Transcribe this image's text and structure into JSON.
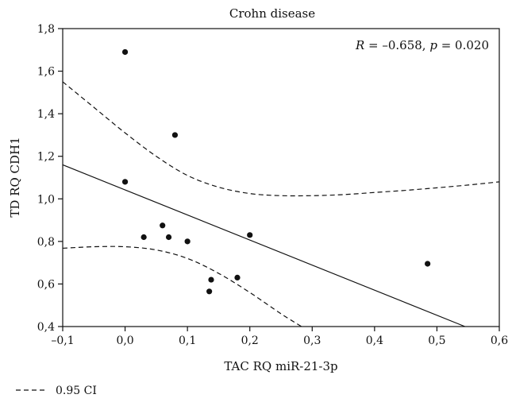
{
  "chart_data": {
    "type": "scatter",
    "title": "Crohn disease",
    "xlabel": "TAC RQ miR-21-3p",
    "ylabel": "TD RQ CDH1",
    "xlim": [
      -0.1,
      0.6
    ],
    "ylim": [
      0.4,
      1.8
    ],
    "x_ticks": [
      "–0,1",
      "0,0",
      "0,1",
      "0,2",
      "0,3",
      "0,4",
      "0,5",
      "0,6"
    ],
    "y_ticks": [
      "0,4",
      "0,6",
      "0,8",
      "1,0",
      "1,2",
      "1,4",
      "1,6",
      "1,8"
    ],
    "grid": false,
    "annotation": {
      "r_symbol": "R",
      "r_text": " = –0.658, ",
      "p_symbol": "p",
      "p_text": " = 0.020",
      "placement": "top-right"
    },
    "points": [
      {
        "x": 0.0,
        "y": 1.69
      },
      {
        "x": 0.08,
        "y": 1.3
      },
      {
        "x": 0.0,
        "y": 1.08
      },
      {
        "x": 0.06,
        "y": 0.875
      },
      {
        "x": 0.03,
        "y": 0.82
      },
      {
        "x": 0.07,
        "y": 0.82
      },
      {
        "x": 0.1,
        "y": 0.8
      },
      {
        "x": 0.2,
        "y": 0.83
      },
      {
        "x": 0.138,
        "y": 0.62
      },
      {
        "x": 0.135,
        "y": 0.565
      },
      {
        "x": 0.18,
        "y": 0.63
      },
      {
        "x": 0.485,
        "y": 0.695
      }
    ],
    "regression_line": {
      "x": [
        -0.1,
        0.545
      ],
      "y": [
        1.16,
        0.4
      ]
    },
    "ci_upper": {
      "x": [
        -0.1,
        -0.05,
        0.0,
        0.05,
        0.1,
        0.15,
        0.2,
        0.25,
        0.3,
        0.35,
        0.4,
        0.45,
        0.5,
        0.55,
        0.6
      ],
      "y": [
        1.55,
        1.43,
        1.31,
        1.2,
        1.11,
        1.055,
        1.025,
        1.015,
        1.015,
        1.02,
        1.03,
        1.04,
        1.052,
        1.065,
        1.08
      ]
    },
    "ci_lower": {
      "x": [
        -0.1,
        -0.05,
        0.0,
        0.05,
        0.1,
        0.15,
        0.2,
        0.25,
        0.283
      ],
      "y": [
        0.768,
        0.775,
        0.775,
        0.76,
        0.72,
        0.65,
        0.56,
        0.46,
        0.4
      ]
    },
    "legend": {
      "entries": [
        {
          "label": "0.95 CI",
          "style": "dashed"
        }
      ],
      "placement": "bottom-left"
    },
    "colors": {
      "points": "#111111",
      "lines": "#111111",
      "axes": "#111111"
    }
  }
}
